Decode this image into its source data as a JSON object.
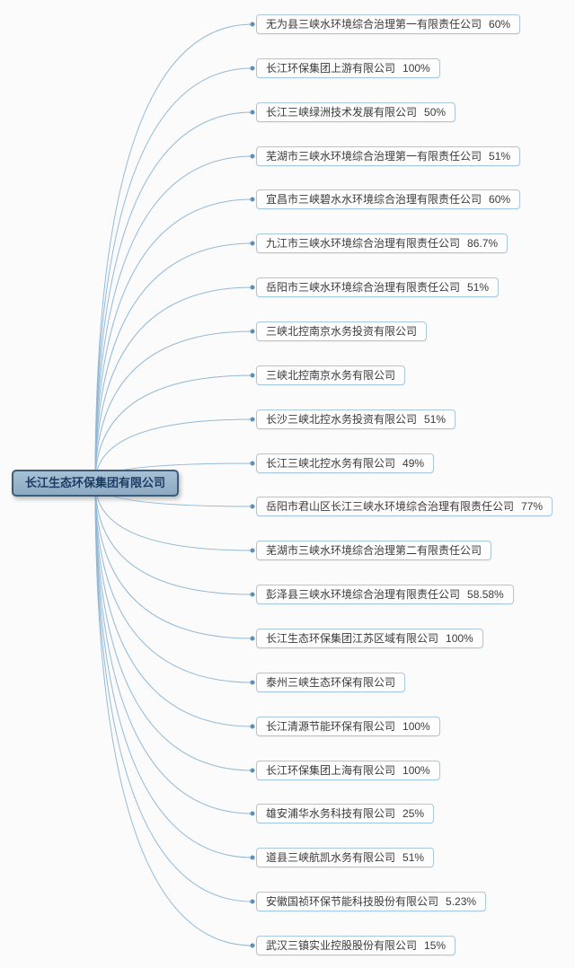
{
  "root": {
    "label": "长江生态环保集团有限公司"
  },
  "children": [
    {
      "name": "无为县三峡水环境综合治理第一有限责任公司",
      "pct": "60%"
    },
    {
      "name": "长江环保集团上游有限公司",
      "pct": "100%"
    },
    {
      "name": "长江三峡绿洲技术发展有限公司",
      "pct": "50%"
    },
    {
      "name": "芜湖市三峡水环境综合治理第一有限责任公司",
      "pct": "51%"
    },
    {
      "name": "宜昌市三峡碧水水环境综合治理有限责任公司",
      "pct": "60%"
    },
    {
      "name": "九江市三峡水环境综合治理有限责任公司",
      "pct": "86.7%"
    },
    {
      "name": "岳阳市三峡水环境综合治理有限责任公司",
      "pct": "51%"
    },
    {
      "name": "三峡北控南京水务投资有限公司",
      "pct": ""
    },
    {
      "name": "三峡北控南京水务有限公司",
      "pct": ""
    },
    {
      "name": "长沙三峡北控水务投资有限公司",
      "pct": "51%"
    },
    {
      "name": "长江三峡北控水务有限公司",
      "pct": "49%"
    },
    {
      "name": "岳阳市君山区长江三峡水环境综合治理有限责任公司",
      "pct": "77%"
    },
    {
      "name": "芜湖市三峡水环境综合治理第二有限责任公司",
      "pct": ""
    },
    {
      "name": "彭泽县三峡水环境综合治理有限责任公司",
      "pct": "58.58%"
    },
    {
      "name": "长江生态环保集团江苏区域有限公司",
      "pct": "100%"
    },
    {
      "name": "泰州三峡生态环保有限公司",
      "pct": ""
    },
    {
      "name": "长江清源节能环保有限公司",
      "pct": "100%"
    },
    {
      "name": "长江环保集团上海有限公司",
      "pct": "100%"
    },
    {
      "name": "雄安浦华水务科技有限公司",
      "pct": "25%"
    },
    {
      "name": "道县三峡航凯水务有限公司",
      "pct": "51%"
    },
    {
      "name": "安徽国祯环保节能科技股份有限公司",
      "pct": "5.23%"
    },
    {
      "name": "武汉三镇实业控股股份有限公司",
      "pct": "15%"
    }
  ],
  "colors": {
    "background": "#fbfbfb",
    "connector_line": "#93b9d6",
    "connector_dot": "#5e8fb5",
    "child_border": "#a9c7dd",
    "child_background": "#fdfdfe",
    "child_text": "#3b3b3b",
    "root_border": "#3d5c77",
    "root_fill_top": "#a7c1d5",
    "root_fill_bottom": "#8caac2",
    "root_text": "#1c3c63"
  }
}
